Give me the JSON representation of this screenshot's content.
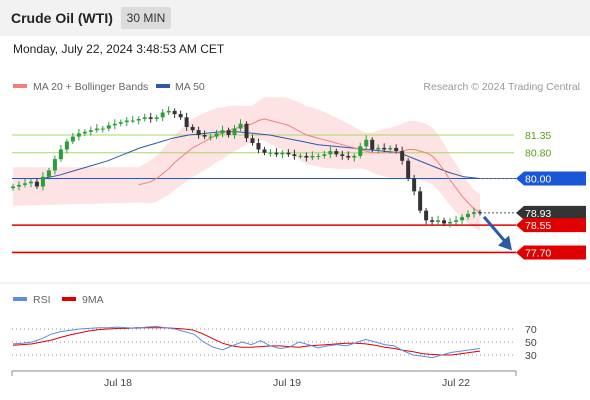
{
  "header": {
    "title": "Crude Oil (WTI)",
    "timeframe": "30 MIN"
  },
  "datetime": "Monday, July 22, 2024 3:48:53 AM CET",
  "colors": {
    "candle_up": "#2a9e3c",
    "candle_down": "#333333",
    "bollinger_fill": "#fcdcdc",
    "ma20": "#f08080",
    "ma50": "#2d5aa8",
    "green_level": "#a6d96a",
    "blue_level": "#1a56d6",
    "red_level": "#e00000",
    "current_price": "#333333",
    "rsi": "#5b8de0",
    "rsi_9ma": "#e00000",
    "arrow": "#2d5aa8"
  },
  "legend": {
    "ma20_label": "MA 20 + Bollinger Bands",
    "ma50_label": "MA 50",
    "credit": "Research © 2024 Trading Central"
  },
  "levels": [
    {
      "value": 81.35,
      "label": "81.35",
      "style": "green"
    },
    {
      "value": 80.8,
      "label": "80.80",
      "style": "green"
    },
    {
      "value": 80.0,
      "label": "80.00",
      "style": "blue"
    },
    {
      "value": 78.93,
      "label": "78.93",
      "style": "current"
    },
    {
      "value": 78.55,
      "label": "78.55",
      "style": "red"
    },
    {
      "value": 77.7,
      "label": "77.70",
      "style": "red"
    }
  ],
  "chart_data": {
    "type": "candlestick",
    "x_labels": [
      "Jul 18",
      "Jul 19",
      "Jul 22"
    ],
    "price_range": [
      77.0,
      82.5
    ],
    "closes": [
      79.75,
      79.8,
      79.85,
      79.9,
      79.75,
      80.05,
      80.25,
      80.6,
      80.9,
      81.15,
      81.3,
      81.4,
      81.45,
      81.5,
      81.55,
      81.55,
      81.65,
      81.7,
      81.75,
      81.8,
      81.8,
      81.85,
      81.9,
      81.85,
      81.9,
      82.05,
      82.1,
      82.0,
      81.9,
      81.6,
      81.5,
      81.35,
      81.3,
      81.3,
      81.4,
      81.5,
      81.35,
      81.55,
      81.7,
      81.25,
      81.1,
      80.9,
      80.8,
      80.8,
      80.75,
      80.8,
      80.75,
      80.7,
      80.7,
      80.65,
      80.7,
      80.7,
      80.75,
      80.85,
      80.75,
      80.7,
      80.65,
      80.7,
      81.0,
      81.2,
      80.9,
      80.95,
      80.9,
      80.95,
      80.85,
      80.55,
      80.0,
      79.6,
      79.0,
      78.7,
      78.65,
      78.7,
      78.6,
      78.65,
      78.7,
      78.8,
      78.9,
      78.95,
      78.93
    ],
    "ma20": [
      79.8,
      79.85,
      79.9,
      80.0,
      80.15,
      80.3,
      80.5,
      80.65,
      80.8,
      80.95,
      81.05,
      81.15,
      81.25,
      81.35,
      81.4,
      81.5,
      81.55,
      81.6,
      81.65,
      81.7,
      81.8,
      81.85,
      81.8,
      81.75,
      81.7,
      81.65,
      81.55,
      81.45,
      81.35,
      81.3,
      81.25,
      81.2,
      81.15,
      81.1,
      81.05,
      81.0,
      80.95,
      80.9,
      80.85,
      80.8,
      80.8,
      80.8,
      80.8,
      80.8,
      80.85,
      80.9,
      80.9,
      80.85,
      80.8,
      80.7,
      80.5,
      80.25,
      79.95,
      79.7,
      79.45,
      79.25,
      79.05,
      78.95
    ],
    "ma50": [
      80.0,
      80.1,
      80.25,
      80.4,
      80.55,
      80.75,
      80.95,
      81.1,
      81.25,
      81.35,
      81.4,
      81.45,
      81.45,
      81.4,
      81.35,
      81.25,
      81.15,
      81.05,
      81.0,
      80.95,
      80.9,
      80.85,
      80.8,
      80.6,
      80.4,
      80.2,
      80.05,
      80.0
    ],
    "rsi_levels": [
      70,
      50,
      30
    ],
    "rsi_label": "RSI",
    "rsi_ma_label": "9MA",
    "rsi": [
      47,
      48,
      50,
      55,
      62,
      66,
      68,
      70,
      71,
      72,
      72,
      73,
      72,
      71,
      73,
      74,
      72,
      70,
      66,
      62,
      50,
      42,
      38,
      44,
      50,
      46,
      52,
      44,
      40,
      42,
      50,
      46,
      41,
      44,
      46,
      44,
      49,
      54,
      50,
      46,
      44,
      36,
      30,
      28,
      26,
      30,
      34,
      36,
      38,
      40
    ],
    "rsi_ma": [
      45,
      46,
      47,
      50,
      53,
      57,
      61,
      64,
      67,
      69,
      70,
      71,
      71,
      72,
      72,
      72,
      72,
      71,
      70,
      68,
      62,
      55,
      48,
      44,
      42,
      42,
      43,
      44,
      44,
      43,
      42,
      44,
      45,
      46,
      47,
      48,
      48,
      47,
      45,
      42,
      40,
      37,
      35,
      32,
      31,
      30,
      30,
      32,
      34,
      36
    ]
  }
}
